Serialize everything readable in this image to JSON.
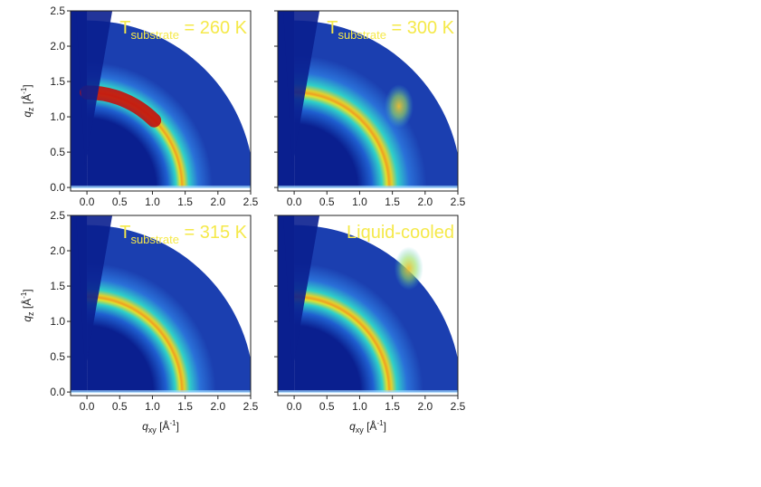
{
  "chart_data": [
    {
      "type": "heatmap",
      "panel": "top-left",
      "title": {
        "main": "T",
        "sub": "substrate",
        "rest": " = 260 K"
      },
      "ylabel": "q_z [Å^-1]",
      "xlabel": "",
      "xlim": [
        -0.25,
        2.5
      ],
      "ylim": [
        -0.05,
        2.5
      ],
      "xticks": [
        "0.0",
        "0.5",
        "1.0",
        "1.5",
        "2.0",
        "2.5"
      ],
      "yticks": [
        "0.0",
        "0.5",
        "1.0",
        "1.5",
        "2.0",
        "2.5"
      ],
      "features": {
        "ring_q": 1.45,
        "ring_width": 0.18,
        "hot_arc_angle_deg": [
          45,
          90
        ],
        "extra_spot": null
      }
    },
    {
      "type": "heatmap",
      "panel": "top-right",
      "title": {
        "main": "T",
        "sub": "substrate",
        "rest": " = 300 K"
      },
      "ylabel": "",
      "xlabel": "",
      "xlim": [
        -0.25,
        2.5
      ],
      "ylim": [
        -0.05,
        2.5
      ],
      "xticks": [
        "0.0",
        "0.5",
        "1.0",
        "1.5",
        "2.0",
        "2.5"
      ],
      "yticks": [],
      "features": {
        "ring_q": 1.45,
        "ring_width": 0.22,
        "hot_arc_angle_deg": null,
        "extra_spot": [
          1.6,
          1.15
        ]
      }
    },
    {
      "type": "heatmap",
      "panel": "bottom-left",
      "title": {
        "main": "T",
        "sub": "substrate",
        "rest": " = 315 K"
      },
      "ylabel": "q_z [Å^-1]",
      "xlabel": "q_xy [Å^-1]",
      "xlim": [
        -0.25,
        2.5
      ],
      "ylim": [
        -0.05,
        2.5
      ],
      "xticks": [
        "0.0",
        "0.5",
        "1.0",
        "1.5",
        "2.0",
        "2.5"
      ],
      "yticks": [
        "0.0",
        "0.5",
        "1.0",
        "1.5",
        "2.0",
        "2.5"
      ],
      "features": {
        "ring_q": 1.45,
        "ring_width": 0.2,
        "hot_arc_angle_deg": null,
        "extra_spot": null
      }
    },
    {
      "type": "heatmap",
      "panel": "bottom-right",
      "title": {
        "main": "Liquid-cooled",
        "sub": "",
        "rest": ""
      },
      "ylabel": "",
      "xlabel": "q_xy [Å^-1]",
      "xlim": [
        -0.25,
        2.5
      ],
      "ylim": [
        -0.05,
        2.5
      ],
      "xticks": [
        "0.0",
        "0.5",
        "1.0",
        "1.5",
        "2.0",
        "2.5"
      ],
      "yticks": [],
      "features": {
        "ring_q": 1.45,
        "ring_width": 0.2,
        "hot_arc_angle_deg": null,
        "extra_spot": [
          1.75,
          1.75
        ]
      }
    }
  ],
  "colors": {
    "background": "#0a1f8f",
    "ring_mid": "#2fd0c8",
    "ring_peak": "#f0a020",
    "hot": "#c01010",
    "text_yellow": "#f5e94a"
  }
}
